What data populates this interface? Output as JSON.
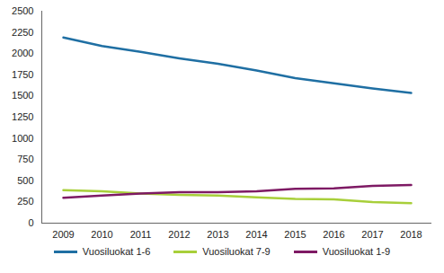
{
  "chart_data": {
    "type": "line",
    "categories": [
      "2009",
      "2010",
      "2011",
      "2012",
      "2013",
      "2014",
      "2015",
      "2016",
      "2017",
      "2018"
    ],
    "series": [
      {
        "name": "Vuosiluokat 1-6",
        "color": "#1f6fa3",
        "values": [
          2190,
          2090,
          2020,
          1945,
          1880,
          1800,
          1710,
          1650,
          1590,
          1535
        ]
      },
      {
        "name": "Vuosiluokat 7-9",
        "color": "#a8cf3a",
        "values": [
          390,
          375,
          350,
          335,
          325,
          305,
          285,
          280,
          250,
          235
        ]
      },
      {
        "name": "Vuosiluokat 1-9",
        "color": "#7e1a64",
        "values": [
          300,
          325,
          350,
          365,
          365,
          375,
          405,
          410,
          440,
          450
        ]
      }
    ],
    "ylim": [
      0,
      2500
    ],
    "yticks": [
      0,
      250,
      500,
      750,
      1000,
      1250,
      1500,
      1750,
      2000,
      2250,
      2500
    ],
    "grid": false,
    "legend": "bottom"
  }
}
